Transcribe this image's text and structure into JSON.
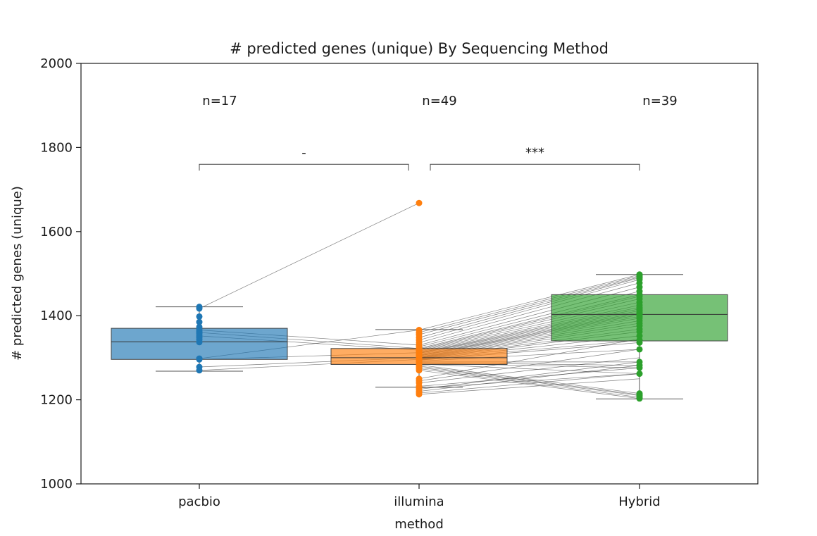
{
  "chart_data": {
    "type": "box",
    "title": "# predicted genes (unique) By Sequencing Method",
    "xlabel": "method",
    "ylabel": "# predicted genes (unique)",
    "ylim": [
      1000,
      2000
    ],
    "yticks": [
      1000,
      1200,
      1400,
      1600,
      1800,
      2000
    ],
    "categories": [
      "pacbio",
      "illumina",
      "Hybrid"
    ],
    "colors": [
      "#1f77b4",
      "#ff7f0e",
      "#2ca02c"
    ],
    "grid": false,
    "boxes": [
      {
        "name": "pacbio",
        "whisker_low": 1268,
        "q1": 1296,
        "median": 1338,
        "q3": 1370,
        "whisker_high": 1421,
        "points": [
          1421,
          1417,
          1398,
          1385,
          1373,
          1366,
          1362,
          1360,
          1357,
          1352,
          1348,
          1343,
          1337,
          1298,
          1296,
          1278,
          1270
        ]
      },
      {
        "name": "illumina",
        "whisker_low": 1230,
        "q1": 1284,
        "median": 1300,
        "q3": 1322,
        "whisker_high": 1367,
        "points": [
          1668,
          1366,
          1360,
          1355,
          1348,
          1342,
          1336,
          1330,
          1326,
          1322,
          1320,
          1318,
          1316,
          1314,
          1312,
          1311,
          1310,
          1308,
          1306,
          1305,
          1304,
          1302,
          1301,
          1300,
          1299,
          1298,
          1297,
          1296,
          1295,
          1294,
          1292,
          1290,
          1288,
          1287,
          1285,
          1283,
          1280,
          1277,
          1274,
          1270,
          1250,
          1245,
          1240,
          1232,
          1228,
          1225,
          1220,
          1216,
          1213
        ]
      },
      {
        "name": "Hybrid",
        "whisker_low": 1202,
        "q1": 1340,
        "median": 1403,
        "q3": 1450,
        "whisker_high": 1498,
        "points": [
          1498,
          1495,
          1492,
          1490,
          1486,
          1478,
          1468,
          1458,
          1450,
          1446,
          1440,
          1432,
          1425,
          1420,
          1416,
          1412,
          1408,
          1405,
          1402,
          1398,
          1394,
          1388,
          1382,
          1376,
          1368,
          1362,
          1352,
          1342,
          1336,
          1320,
          1290,
          1282,
          1276,
          1262,
          1215,
          1212,
          1210,
          1206,
          1203
        ]
      }
    ],
    "annotations": {
      "counts": [
        "n=17",
        "n=49",
        "n=39"
      ],
      "brackets": [
        {
          "from": "pacbio",
          "to": "illumina",
          "label": "-",
          "y": 1760
        },
        {
          "from": "illumina",
          "to": "Hybrid",
          "label": "***",
          "y": 1760
        }
      ]
    },
    "paired_lines": {
      "pacbio_illumina": [
        [
          1417,
          1668
        ],
        [
          1298,
          1366
        ],
        [
          1366,
          1330
        ],
        [
          1360,
          1322
        ],
        [
          1352,
          1318
        ],
        [
          1296,
          1312
        ],
        [
          1278,
          1300
        ],
        [
          1270,
          1296
        ]
      ],
      "illumina_hybrid": [
        [
          1366,
          1498
        ],
        [
          1360,
          1495
        ],
        [
          1355,
          1492
        ],
        [
          1348,
          1490
        ],
        [
          1342,
          1486
        ],
        [
          1336,
          1478
        ],
        [
          1330,
          1468
        ],
        [
          1326,
          1458
        ],
        [
          1322,
          1450
        ],
        [
          1320,
          1446
        ],
        [
          1318,
          1440
        ],
        [
          1316,
          1432
        ],
        [
          1314,
          1425
        ],
        [
          1312,
          1420
        ],
        [
          1311,
          1416
        ],
        [
          1310,
          1412
        ],
        [
          1308,
          1408
        ],
        [
          1306,
          1405
        ],
        [
          1305,
          1402
        ],
        [
          1304,
          1398
        ],
        [
          1302,
          1394
        ],
        [
          1301,
          1388
        ],
        [
          1300,
          1382
        ],
        [
          1299,
          1376
        ],
        [
          1298,
          1368
        ],
        [
          1297,
          1362
        ],
        [
          1296,
          1352
        ],
        [
          1295,
          1342
        ],
        [
          1294,
          1336
        ],
        [
          1292,
          1320
        ],
        [
          1290,
          1290
        ],
        [
          1288,
          1282
        ],
        [
          1287,
          1276
        ],
        [
          1285,
          1262
        ],
        [
          1283,
          1215
        ],
        [
          1280,
          1212
        ],
        [
          1277,
          1210
        ],
        [
          1274,
          1206
        ],
        [
          1270,
          1203
        ],
        [
          1250,
          1345
        ],
        [
          1245,
          1320
        ],
        [
          1240,
          1300
        ],
        [
          1232,
          1276
        ],
        [
          1228,
          1262
        ],
        [
          1225,
          1290
        ],
        [
          1220,
          1282
        ],
        [
          1216,
          1262
        ],
        [
          1213,
          1250
        ]
      ]
    }
  }
}
